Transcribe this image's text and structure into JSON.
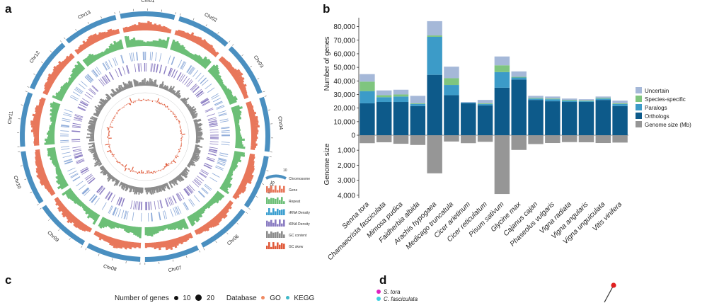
{
  "panels": {
    "a": "a",
    "b": "b",
    "c": "c",
    "d": "d"
  },
  "circos": {
    "chromosomes": [
      "Chr01",
      "Chr02",
      "Chr03",
      "Chr04",
      "Chr05",
      "Chr06",
      "Chr07",
      "Chr08",
      "Chr09",
      "Chr10",
      "Chr11",
      "Chr12",
      "Chr13"
    ],
    "legend": [
      "Chromosome",
      "Gene",
      "Repeat",
      "rRNA Density",
      "tRNA Density",
      "GC content",
      "GC skew"
    ],
    "legend_scale": "10",
    "colors": {
      "chromosome": "#4a8fc0",
      "gene": "#e8775b",
      "repeat": "#6cbf77",
      "rrna": "#3d9fd0",
      "trna": "#8a7cc2",
      "gc": "#8c8c8c",
      "skew": "#e05a3a"
    }
  },
  "chart_data": {
    "type": "bar",
    "categories": [
      "Senna tora",
      "Chamaecrista fasciculata",
      "Mimosa pudica",
      "Faidherbia albida",
      "Arachis hypogaea",
      "Medicago truncatula",
      "Cicer arietinum",
      "Cicer reticulatum",
      "Pisum sativum",
      "Glycine max",
      "Cajanus cajan",
      "Phaseolus vulgaris",
      "Vigna radiata",
      "Vigna angularis",
      "Vigna unguiculata",
      "Vitis vinifera"
    ],
    "series": [
      {
        "name": "Orthologs",
        "color": "#0d5a8a",
        "values": [
          23500,
          24500,
          24500,
          21500,
          44500,
          29500,
          23500,
          22000,
          35000,
          41000,
          26000,
          25000,
          24500,
          24500,
          26000,
          21500
        ]
      },
      {
        "name": "Paralogs",
        "color": "#3c9bc8",
        "values": [
          9000,
          3500,
          4000,
          1500,
          28000,
          7500,
          500,
          1000,
          11500,
          1500,
          1000,
          1500,
          1000,
          500,
          1000,
          1500
        ]
      },
      {
        "name": "Species-specific",
        "color": "#7fc57f",
        "values": [
          7000,
          1500,
          1500,
          500,
          1000,
          5000,
          0,
          500,
          5000,
          500,
          500,
          500,
          500,
          500,
          500,
          500
        ]
      },
      {
        "name": "Uncertain",
        "color": "#a5b8d8",
        "values": [
          5500,
          3500,
          3500,
          5500,
          10500,
          8500,
          500,
          2500,
          6500,
          4000,
          1500,
          1500,
          1000,
          1000,
          1000,
          2000
        ]
      },
      {
        "name": "Genome size (Mb)",
        "color": "#969696",
        "values": [
          530,
          470,
          570,
          650,
          2540,
          420,
          530,
          440,
          3920,
          980,
          590,
          520,
          460,
          470,
          520,
          490
        ]
      }
    ],
    "ylabel_top": "Number of genes",
    "ylabel_bottom": "Genome size",
    "yticks_top": [
      "0",
      "10,000",
      "20,000",
      "30,000",
      "40,000",
      "50,000",
      "60,000",
      "70,000",
      "80,000"
    ],
    "yticks_bottom": [
      "1,000",
      "2,000",
      "3,000",
      "4,000"
    ],
    "ylim_top": [
      0,
      85000
    ],
    "ylim_bottom": [
      0,
      4200
    ],
    "legend_position": "right"
  },
  "panel_c": {
    "legend_size_title": "Number of genes",
    "size_10": "10",
    "size_20": "20",
    "legend_db_title": "Database",
    "db_go": "GO",
    "db_kegg": "KEGG"
  },
  "panel_d": {
    "species": [
      {
        "name": "S. tora",
        "color": "#e020c0"
      },
      {
        "name": "C. fasciculata",
        "color": "#40d0e0"
      }
    ]
  }
}
